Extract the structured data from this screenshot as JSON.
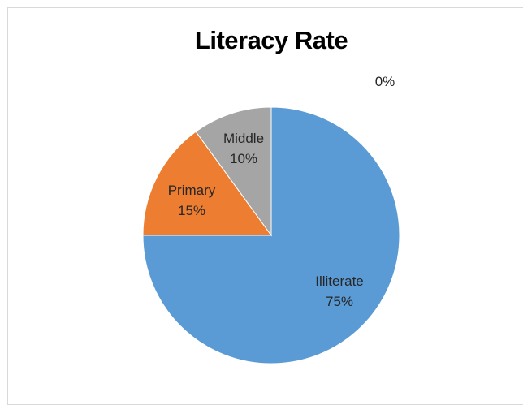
{
  "chart_data": {
    "type": "pie",
    "title": "Literacy Rate",
    "slices": [
      {
        "label": "Illiterate",
        "value": 75,
        "display": "75%",
        "color": "#5b9bd5"
      },
      {
        "label": "Primary",
        "value": 15,
        "display": "15%",
        "color": "#ed7d31"
      },
      {
        "label": "Middle",
        "value": 10,
        "display": "10%",
        "color": "#a5a5a5"
      },
      {
        "label": "",
        "value": 0,
        "display": "0%",
        "color": "#ffc000"
      }
    ],
    "legend": "none"
  }
}
